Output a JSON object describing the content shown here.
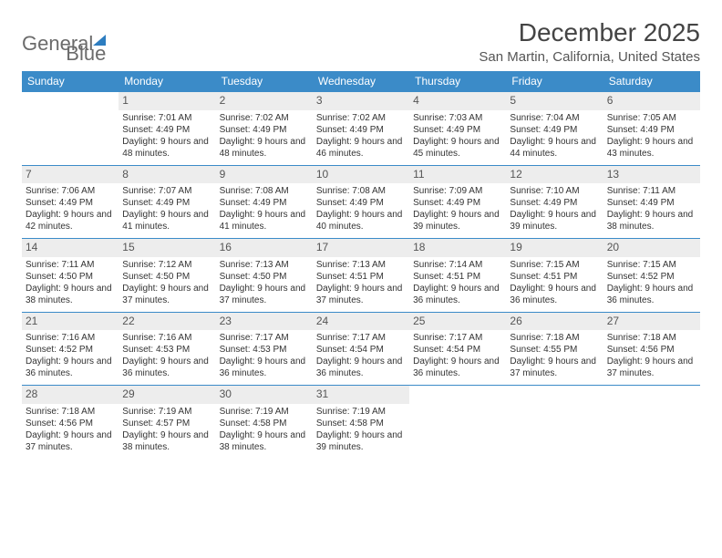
{
  "logo": {
    "word1": "General",
    "word2": "Blue"
  },
  "title": "December 2025",
  "location": "San Martin, California, United States",
  "colors": {
    "header_bg": "#3b8bc8",
    "header_text": "#ffffff",
    "daynum_bg": "#ededed",
    "border": "#3b8bc8",
    "logo_gray": "#6b6b6b",
    "logo_blue": "#2d7dc0"
  },
  "day_headers": [
    "Sunday",
    "Monday",
    "Tuesday",
    "Wednesday",
    "Thursday",
    "Friday",
    "Saturday"
  ],
  "start_weekday": 1,
  "days": [
    {
      "n": 1,
      "sunrise": "7:01 AM",
      "sunset": "4:49 PM",
      "dl": "9 hours and 48 minutes."
    },
    {
      "n": 2,
      "sunrise": "7:02 AM",
      "sunset": "4:49 PM",
      "dl": "9 hours and 48 minutes."
    },
    {
      "n": 3,
      "sunrise": "7:02 AM",
      "sunset": "4:49 PM",
      "dl": "9 hours and 46 minutes."
    },
    {
      "n": 4,
      "sunrise": "7:03 AM",
      "sunset": "4:49 PM",
      "dl": "9 hours and 45 minutes."
    },
    {
      "n": 5,
      "sunrise": "7:04 AM",
      "sunset": "4:49 PM",
      "dl": "9 hours and 44 minutes."
    },
    {
      "n": 6,
      "sunrise": "7:05 AM",
      "sunset": "4:49 PM",
      "dl": "9 hours and 43 minutes."
    },
    {
      "n": 7,
      "sunrise": "7:06 AM",
      "sunset": "4:49 PM",
      "dl": "9 hours and 42 minutes."
    },
    {
      "n": 8,
      "sunrise": "7:07 AM",
      "sunset": "4:49 PM",
      "dl": "9 hours and 41 minutes."
    },
    {
      "n": 9,
      "sunrise": "7:08 AM",
      "sunset": "4:49 PM",
      "dl": "9 hours and 41 minutes."
    },
    {
      "n": 10,
      "sunrise": "7:08 AM",
      "sunset": "4:49 PM",
      "dl": "9 hours and 40 minutes."
    },
    {
      "n": 11,
      "sunrise": "7:09 AM",
      "sunset": "4:49 PM",
      "dl": "9 hours and 39 minutes."
    },
    {
      "n": 12,
      "sunrise": "7:10 AM",
      "sunset": "4:49 PM",
      "dl": "9 hours and 39 minutes."
    },
    {
      "n": 13,
      "sunrise": "7:11 AM",
      "sunset": "4:49 PM",
      "dl": "9 hours and 38 minutes."
    },
    {
      "n": 14,
      "sunrise": "7:11 AM",
      "sunset": "4:50 PM",
      "dl": "9 hours and 38 minutes."
    },
    {
      "n": 15,
      "sunrise": "7:12 AM",
      "sunset": "4:50 PM",
      "dl": "9 hours and 37 minutes."
    },
    {
      "n": 16,
      "sunrise": "7:13 AM",
      "sunset": "4:50 PM",
      "dl": "9 hours and 37 minutes."
    },
    {
      "n": 17,
      "sunrise": "7:13 AM",
      "sunset": "4:51 PM",
      "dl": "9 hours and 37 minutes."
    },
    {
      "n": 18,
      "sunrise": "7:14 AM",
      "sunset": "4:51 PM",
      "dl": "9 hours and 36 minutes."
    },
    {
      "n": 19,
      "sunrise": "7:15 AM",
      "sunset": "4:51 PM",
      "dl": "9 hours and 36 minutes."
    },
    {
      "n": 20,
      "sunrise": "7:15 AM",
      "sunset": "4:52 PM",
      "dl": "9 hours and 36 minutes."
    },
    {
      "n": 21,
      "sunrise": "7:16 AM",
      "sunset": "4:52 PM",
      "dl": "9 hours and 36 minutes."
    },
    {
      "n": 22,
      "sunrise": "7:16 AM",
      "sunset": "4:53 PM",
      "dl": "9 hours and 36 minutes."
    },
    {
      "n": 23,
      "sunrise": "7:17 AM",
      "sunset": "4:53 PM",
      "dl": "9 hours and 36 minutes."
    },
    {
      "n": 24,
      "sunrise": "7:17 AM",
      "sunset": "4:54 PM",
      "dl": "9 hours and 36 minutes."
    },
    {
      "n": 25,
      "sunrise": "7:17 AM",
      "sunset": "4:54 PM",
      "dl": "9 hours and 36 minutes."
    },
    {
      "n": 26,
      "sunrise": "7:18 AM",
      "sunset": "4:55 PM",
      "dl": "9 hours and 37 minutes."
    },
    {
      "n": 27,
      "sunrise": "7:18 AM",
      "sunset": "4:56 PM",
      "dl": "9 hours and 37 minutes."
    },
    {
      "n": 28,
      "sunrise": "7:18 AM",
      "sunset": "4:56 PM",
      "dl": "9 hours and 37 minutes."
    },
    {
      "n": 29,
      "sunrise": "7:19 AM",
      "sunset": "4:57 PM",
      "dl": "9 hours and 38 minutes."
    },
    {
      "n": 30,
      "sunrise": "7:19 AM",
      "sunset": "4:58 PM",
      "dl": "9 hours and 38 minutes."
    },
    {
      "n": 31,
      "sunrise": "7:19 AM",
      "sunset": "4:58 PM",
      "dl": "9 hours and 39 minutes."
    }
  ],
  "labels": {
    "sunrise": "Sunrise:",
    "sunset": "Sunset:",
    "daylight": "Daylight:"
  }
}
